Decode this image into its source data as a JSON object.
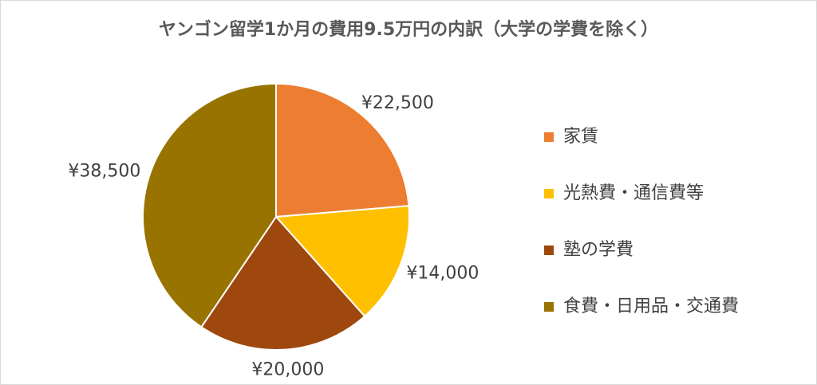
{
  "chart_data": {
    "type": "pie",
    "title": "ヤンゴン留学1か月の費用9.5万円の内訳（大学の学費を除く）",
    "categories": [
      "家賃",
      "光熱費・通信費等",
      "塾の学費",
      "食費・日用品・交通費"
    ],
    "values": [
      22500,
      14000,
      20000,
      38500
    ],
    "value_labels": [
      "¥22,500",
      "¥14,000",
      "¥20,000",
      "¥38,500"
    ],
    "colors": [
      "#ED7D31",
      "#FFC000",
      "#9E480E",
      "#997300"
    ],
    "legend": "right"
  }
}
